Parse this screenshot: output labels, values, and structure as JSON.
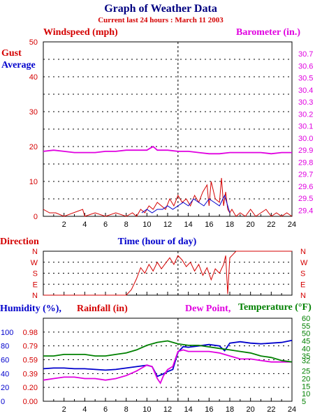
{
  "title": "Graph of Weather Data",
  "subtitle": "Current last 24 hours : March 11 2003",
  "colors": {
    "red": "#d40000",
    "blue": "#0000cc",
    "magenta": "#e000e0",
    "green": "#008000",
    "navy": "#000080"
  },
  "x_ticks": [
    "2",
    "4",
    "6",
    "8",
    "10",
    "12",
    "14",
    "16",
    "18",
    "20",
    "22",
    "24"
  ],
  "chart_data": [
    {
      "type": "line",
      "left_label": "Windspeed (mph)",
      "right_label": "Barometer (in.)",
      "left_series_labels": [
        "Gust",
        "Average"
      ],
      "xlabel": "Time (hour of day)",
      "xlim": [
        0,
        24
      ],
      "ylim_left": [
        0,
        50
      ],
      "ylim_right": [
        29.35,
        30.8
      ],
      "y_ticks_left": [
        "0",
        "10",
        "20",
        "30",
        "40",
        "50"
      ],
      "y_ticks_right": [
        "29.4",
        "29.5",
        "29.6",
        "29.7",
        "29.8",
        "29.9",
        "30.0",
        "30.1",
        "30.2",
        "30.3",
        "30.4",
        "30.5",
        "30.6",
        "30.7"
      ],
      "series": [
        {
          "name": "Gust",
          "axis": "left",
          "color": "#d40000",
          "x": [
            0,
            0.6,
            1.2,
            2,
            3.8,
            4,
            5,
            6,
            7,
            8,
            8.6,
            9,
            9.4,
            9.8,
            10.2,
            10.6,
            11,
            11.4,
            11.8,
            12.2,
            12.6,
            13,
            13.4,
            13.8,
            14.2,
            14.6,
            15,
            15.4,
            15.8,
            16,
            16.2,
            16.6,
            17,
            17.2,
            17.4,
            17.6,
            17.8,
            18,
            18.2,
            18.6,
            19,
            19.5,
            20,
            20.5,
            21,
            21.5,
            22,
            22.5,
            23,
            23.5,
            24
          ],
          "values": [
            2,
            1,
            1,
            0,
            2,
            0,
            1,
            0,
            1,
            0,
            1,
            0,
            2,
            1,
            3,
            2,
            4,
            3,
            2,
            5,
            3,
            6,
            4,
            5,
            3,
            6,
            4,
            7,
            9,
            3,
            10,
            5,
            4,
            11,
            3,
            7,
            2,
            1,
            2,
            0,
            1,
            0,
            2,
            0,
            1,
            2,
            0,
            1,
            0,
            1,
            0
          ]
        },
        {
          "name": "Average",
          "axis": "left",
          "color": "#0000cc",
          "x": [
            9.5,
            10,
            10.5,
            11,
            11.5,
            12,
            12.5,
            13,
            13.5,
            14,
            14.5,
            15,
            15.5,
            16,
            16.5,
            17,
            17.5,
            18
          ],
          "values": [
            1,
            2,
            1,
            2,
            2,
            3,
            2,
            3,
            4,
            3,
            5,
            4,
            3,
            5,
            4,
            3,
            6,
            1
          ]
        },
        {
          "name": "Barometer",
          "axis": "right",
          "color": "#e000e0",
          "x": [
            0,
            1,
            2,
            3,
            4,
            5,
            6,
            7,
            8,
            9,
            10,
            10.6,
            11,
            12,
            13,
            14,
            15,
            16,
            17,
            18,
            19,
            20,
            21,
            22,
            23,
            24
          ],
          "values": [
            29.89,
            29.9,
            29.89,
            29.88,
            29.88,
            29.88,
            29.89,
            29.89,
            29.9,
            29.9,
            29.9,
            29.93,
            29.9,
            29.9,
            29.89,
            29.89,
            29.88,
            29.87,
            29.87,
            29.88,
            29.88,
            29.88,
            29.88,
            29.87,
            29.88,
            29.88
          ]
        }
      ]
    },
    {
      "type": "line",
      "left_label": "Direction",
      "xlabel": "",
      "xlim": [
        0,
        24
      ],
      "categories": [
        "N",
        "W",
        "S",
        "E",
        "N"
      ],
      "series": [
        {
          "name": "Direction",
          "color": "#d40000",
          "x": [
            0,
            8,
            8.5,
            9,
            9.4,
            9.8,
            10.2,
            10.6,
            11,
            11.4,
            11.8,
            12.2,
            12.6,
            13,
            13.4,
            13.8,
            14.2,
            14.6,
            15,
            15.4,
            15.8,
            16.2,
            16.6,
            17,
            17.4,
            17.6,
            17.8,
            18,
            18.3,
            18.6,
            19,
            20,
            21,
            22,
            23,
            24
          ],
          "values": [
            0,
            0,
            0.5,
            1.5,
            2.5,
            2,
            2.8,
            2.2,
            3,
            2.4,
            2.9,
            3.4,
            2.8,
            3.6,
            3.2,
            2.6,
            3,
            2.2,
            2.8,
            1.8,
            2.5,
            1.4,
            2.4,
            2,
            2.8,
            3.6,
            0.1,
            3.4,
            3.7,
            4,
            4,
            4,
            4,
            4,
            4,
            4
          ]
        }
      ]
    },
    {
      "type": "line",
      "left_label": "Humidity (%),",
      "middle_label": "Rainfall (in)",
      "right_labels": [
        "Dew Point,",
        "Temperature (°F)"
      ],
      "xlabel": "",
      "xlim": [
        0,
        24
      ],
      "humidity_ticks": [
        "0",
        "20",
        "40",
        "60",
        "80",
        "100"
      ],
      "rainfall_ticks": [
        "0.00",
        "0.20",
        "0.39",
        "0.59",
        "0.79",
        "0.98"
      ],
      "temperature_ticks": [
        "5",
        "10",
        "15",
        "20",
        "25",
        "32",
        "35",
        "40",
        "45",
        "50",
        "55",
        "60"
      ],
      "series": [
        {
          "name": "Humidity",
          "color": "#0000cc",
          "x": [
            0,
            1,
            2,
            3,
            4,
            5,
            6,
            7,
            8,
            9,
            9.5,
            10,
            10.5,
            11,
            11.5,
            12,
            12.5,
            13,
            13.5,
            14,
            15,
            16,
            17,
            17.5,
            18,
            19,
            20,
            21,
            22,
            23,
            24
          ],
          "values": [
            47,
            48,
            48,
            47,
            47,
            46,
            45,
            46,
            48,
            50,
            51,
            52,
            50,
            36,
            39,
            43,
            46,
            71,
            79,
            78,
            80,
            82,
            80,
            73,
            84,
            86,
            84,
            83,
            84,
            85,
            88
          ]
        },
        {
          "name": "Dew Point",
          "color": "#e000e0",
          "x": [
            0,
            1,
            2,
            3,
            4,
            5,
            6,
            7,
            8,
            9,
            9.5,
            10,
            10.5,
            11,
            11.3,
            11.6,
            12,
            12.5,
            13,
            13.5,
            14,
            15,
            16,
            17,
            18,
            19,
            20,
            21,
            22,
            23,
            24
          ],
          "values": [
            19,
            20,
            21,
            21,
            20,
            20,
            19,
            20,
            22,
            25,
            27,
            29,
            28,
            20,
            17,
            22,
            26,
            28,
            38,
            39,
            38,
            38,
            38,
            37,
            35,
            33,
            33,
            32,
            31,
            31,
            31
          ]
        },
        {
          "name": "Temperature",
          "color": "#008000",
          "x": [
            0,
            1,
            2,
            3,
            4,
            5,
            6,
            7,
            8,
            9,
            10,
            11,
            12,
            13,
            14,
            15,
            16,
            17,
            18,
            19,
            20,
            21,
            22,
            23,
            24
          ],
          "values": [
            35,
            35,
            36,
            36,
            36,
            35,
            35,
            36,
            37,
            39,
            42,
            44,
            45,
            43,
            42,
            42,
            41,
            40,
            39,
            38,
            37,
            35,
            34,
            32,
            31
          ]
        }
      ]
    }
  ]
}
